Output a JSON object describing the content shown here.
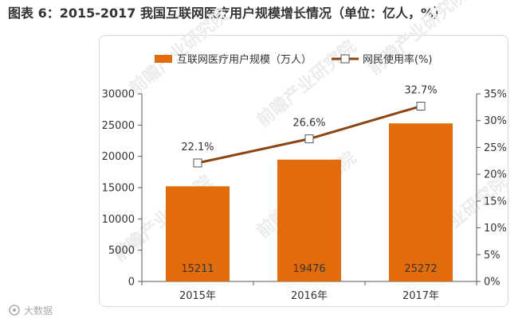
{
  "title": "图表 6：2015-2017 我国互联网医疗用户规模增长情况（单位：亿人，%）",
  "watermark": "前瞻产业研究院",
  "source_logo_text": "大数据",
  "colors": {
    "bar": "#e36c0a",
    "line": "#8b4513",
    "marker_fill": "#ffffff",
    "axis": "#595959"
  },
  "chart_data": {
    "type": "bar",
    "categories": [
      "2015年",
      "2016年",
      "2017年"
    ],
    "series": [
      {
        "name": "互联网医疗用户规模（万人）",
        "type": "bar",
        "axis": "left",
        "values": [
          15211,
          19476,
          25272
        ]
      },
      {
        "name": "网民使用率(%)",
        "type": "line",
        "axis": "right",
        "values": [
          22.1,
          26.6,
          32.7
        ]
      }
    ],
    "y_left": {
      "min": 0,
      "max": 30000,
      "ticks": [
        "0",
        "5000",
        "10000",
        "15000",
        "20000",
        "25000",
        "30000"
      ]
    },
    "y_right": {
      "min": 0,
      "max": 35,
      "ticks": [
        "0%",
        "5%",
        "10%",
        "15%",
        "20%",
        "25%",
        "30%",
        "35%"
      ]
    },
    "bar_labels": [
      "15211",
      "19476",
      "25272"
    ],
    "line_labels": [
      "22.1%",
      "26.6%",
      "32.7%"
    ],
    "legend_position": "top",
    "grid": false
  }
}
